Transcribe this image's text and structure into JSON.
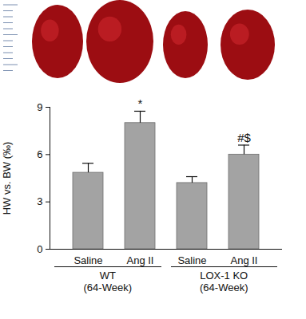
{
  "chart_data": {
    "type": "bar",
    "y_label": "HW vs. BW (‰)",
    "categories": [
      "Saline",
      "Ang II",
      "Saline",
      "Ang II"
    ],
    "values": [
      4.85,
      8.0,
      4.2,
      6.0
    ],
    "errors": [
      0.6,
      0.75,
      0.4,
      0.6
    ],
    "annotations": [
      null,
      "*",
      null,
      "#$"
    ],
    "groups": [
      "WT\n(64-Week)",
      "LOX-1 KO\n(64-Week)"
    ],
    "color": "#a3a3a3",
    "ylim": [
      0,
      9
    ],
    "yticks": [
      0,
      3,
      6,
      9
    ],
    "grid": false
  }
}
